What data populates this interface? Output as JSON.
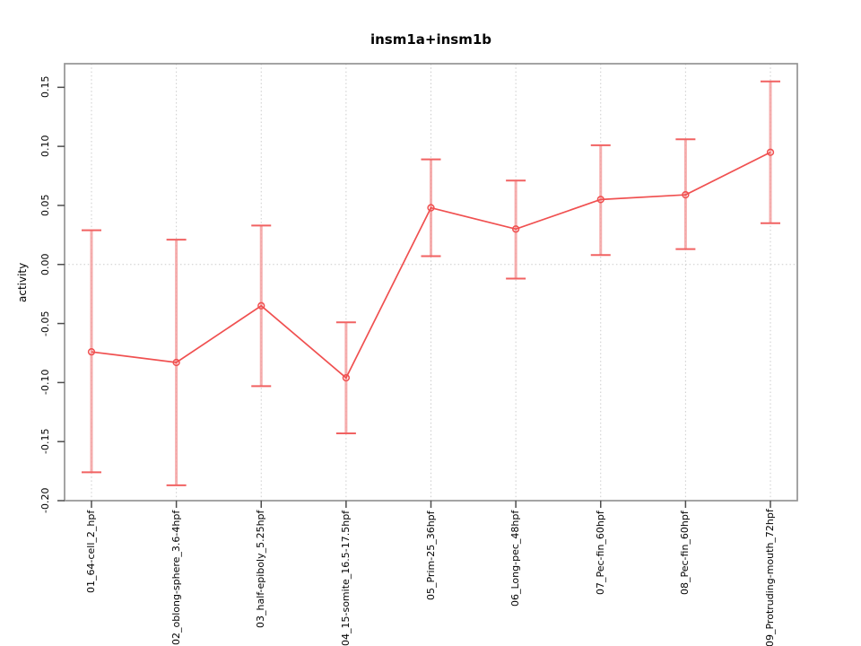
{
  "chart_data": {
    "type": "line",
    "title": "insm1a+insm1b",
    "xlabel": "",
    "ylabel": "activity",
    "legend": "none",
    "categories": [
      "01_64-cell_2_hpf",
      "02_oblong-sphere_3.6-4hpf",
      "03_half-epiboly_5.25hpf",
      "04_15-somite_16.5-17.5hpf",
      "05_Prim-25_36hpf",
      "06_Long-pec_48hpf",
      "07_Pec-fin_60hpf",
      "08_Pec-fin_60hpf",
      "09_Protruding-mouth_72hpf"
    ],
    "series": [
      {
        "name": "activity",
        "marker": "open-circle",
        "values": [
          -0.074,
          -0.083,
          -0.035,
          -0.096,
          0.048,
          0.03,
          0.055,
          0.059,
          0.095
        ],
        "upper": [
          0.029,
          0.021,
          0.033,
          -0.049,
          0.089,
          0.071,
          0.101,
          0.106,
          0.155
        ],
        "lower": [
          -0.176,
          -0.187,
          -0.103,
          -0.143,
          0.007,
          -0.012,
          0.008,
          0.013,
          0.035
        ]
      }
    ],
    "ylim": [
      -0.2,
      0.17
    ],
    "yticks": [
      -0.2,
      -0.15,
      -0.1,
      -0.05,
      0.0,
      0.05,
      0.1,
      0.15
    ],
    "ytick_labels": [
      "-0.20",
      "-0.15",
      "-0.10",
      "-0.05",
      "0.00",
      "0.05",
      "0.10",
      "0.15"
    ],
    "grid": {
      "vertical_dotted_at_categories": true,
      "horizontal_dotted_at_zero": true
    },
    "colors": {
      "line": "#f05050",
      "point": "#f05050",
      "error_bar": "#f5a0a0",
      "error_cap": "#f16262",
      "grid": "#cbcbcb",
      "box": "#949494",
      "tick": "#4d4d4d",
      "text": "#000000"
    }
  }
}
